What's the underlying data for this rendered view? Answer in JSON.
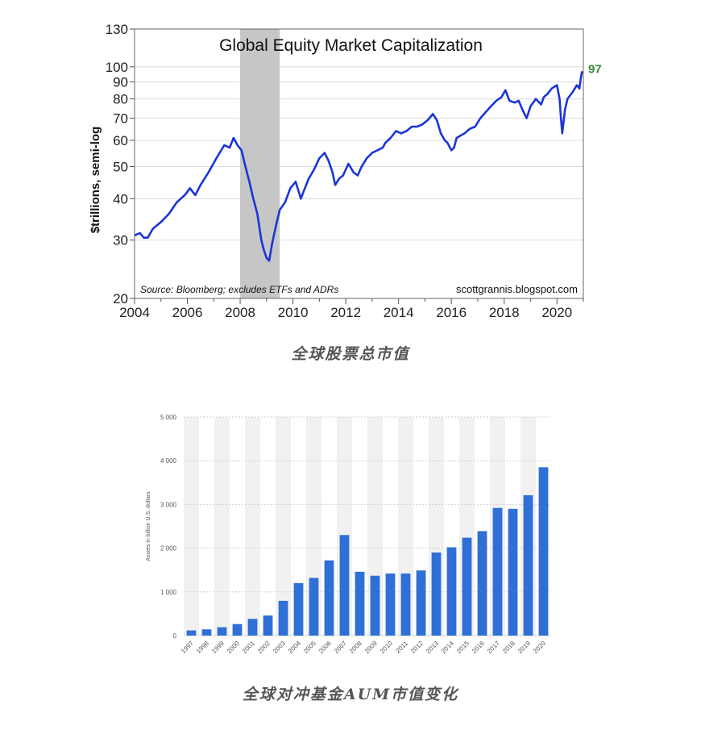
{
  "captions": {
    "chart1": "全球股票总市值",
    "chart2": "全球对冲基金AUM市值变化"
  },
  "colors": {
    "line": "#1a35d8",
    "recession": "#c6c6c6",
    "last_label": "#3a8a3a",
    "bar": "#2f6fd6",
    "bar_stripe": "#f1f1f1"
  },
  "chart_data": [
    {
      "type": "line",
      "title": "Global Equity Market Capitalization",
      "ylabel": "$trillions, semi-log",
      "xlabel": "",
      "log_scale": true,
      "ylim": [
        20,
        130
      ],
      "xlim": [
        2004,
        2021.0
      ],
      "y_ticks": [
        "130",
        "100",
        "90",
        "80",
        "70",
        "60",
        "50",
        "40",
        "30",
        "20"
      ],
      "x_ticks": [
        "2004",
        "2006",
        "2008",
        "2010",
        "2012",
        "2014",
        "2016",
        "2018",
        "2020"
      ],
      "grid": true,
      "shaded_period": [
        2008.0,
        2009.5
      ],
      "source_note": "Source: Bloomberg; excludes ETFs and ADRs",
      "watermark": "scottgrannis.blogspot.com",
      "last_value_label": "97",
      "series": [
        {
          "x": [
            2004.0,
            2004.2,
            2004.35,
            2004.5,
            2004.7,
            2005.0,
            2005.3,
            2005.6,
            2005.9,
            2006.1,
            2006.3,
            2006.5,
            2006.8,
            2007.1,
            2007.4,
            2007.6,
            2007.75,
            2007.9,
            2008.05,
            2008.2,
            2008.35,
            2008.5,
            2008.65,
            2008.8,
            2008.9,
            2009.0,
            2009.1,
            2009.2,
            2009.35,
            2009.5,
            2009.7,
            2009.9,
            2010.1,
            2010.3,
            2010.4,
            2010.6,
            2010.8,
            2011.0,
            2011.2,
            2011.35,
            2011.5,
            2011.6,
            2011.75,
            2011.9,
            2012.1,
            2012.3,
            2012.45,
            2012.6,
            2012.8,
            2013.0,
            2013.2,
            2013.4,
            2013.5,
            2013.7,
            2013.9,
            2014.1,
            2014.3,
            2014.5,
            2014.7,
            2014.9,
            2015.1,
            2015.3,
            2015.45,
            2015.6,
            2015.75,
            2015.85,
            2016.0,
            2016.1,
            2016.2,
            2016.35,
            2016.5,
            2016.7,
            2016.9,
            2017.1,
            2017.3,
            2017.5,
            2017.7,
            2017.9,
            2018.05,
            2018.2,
            2018.4,
            2018.55,
            2018.7,
            2018.85,
            2019.0,
            2019.2,
            2019.4,
            2019.5,
            2019.65,
            2019.8,
            2020.0,
            2020.1,
            2020.15,
            2020.2,
            2020.25,
            2020.3,
            2020.4,
            2020.6,
            2020.75,
            2020.85,
            2020.9,
            2020.95
          ],
          "values": [
            31,
            31.5,
            30.5,
            30.5,
            32.5,
            34,
            36,
            39,
            41,
            43,
            41,
            44,
            48,
            53,
            58,
            57,
            61,
            58,
            56,
            50,
            45,
            40,
            36,
            30,
            28,
            26.5,
            26,
            29,
            33,
            37,
            39,
            43,
            45,
            40,
            42,
            46,
            49,
            53,
            55,
            52,
            48,
            44,
            46,
            47,
            51,
            48,
            47,
            50,
            53,
            55,
            56,
            57,
            59,
            61,
            64,
            63,
            64,
            66,
            66,
            67,
            69,
            72,
            69,
            63,
            60,
            59,
            56,
            57,
            61,
            62,
            63,
            65,
            66,
            70,
            73,
            76,
            79,
            81,
            85,
            79,
            78,
            79,
            74,
            70,
            76,
            80,
            77,
            81,
            83,
            86,
            88,
            80,
            70,
            63,
            68,
            74,
            80,
            84,
            88,
            86,
            92,
            97
          ]
        }
      ]
    },
    {
      "type": "bar",
      "title": "",
      "xlabel": "",
      "ylabel": "Assets in billion U.S. dollars",
      "ylim": [
        0,
        5000
      ],
      "y_ticks": [
        "5 000",
        "4 000",
        "3 000",
        "2 000",
        "1 000",
        "0"
      ],
      "grid": true,
      "categories": [
        "1997",
        "1998",
        "1999",
        "2000",
        "2001",
        "2002",
        "2003",
        "2004",
        "2005",
        "2006",
        "2007",
        "2008",
        "2009",
        "2010",
        "2011",
        "2012",
        "2013",
        "2014",
        "2015",
        "2016",
        "2017",
        "2018",
        "2019",
        "2020"
      ],
      "values": [
        118,
        143,
        191,
        264,
        383,
        459,
        795,
        1200,
        1320,
        1720,
        2300,
        1460,
        1370,
        1420,
        1420,
        1490,
        1900,
        2020,
        2240,
        2390,
        2920,
        2900,
        3210,
        3850
      ]
    }
  ]
}
